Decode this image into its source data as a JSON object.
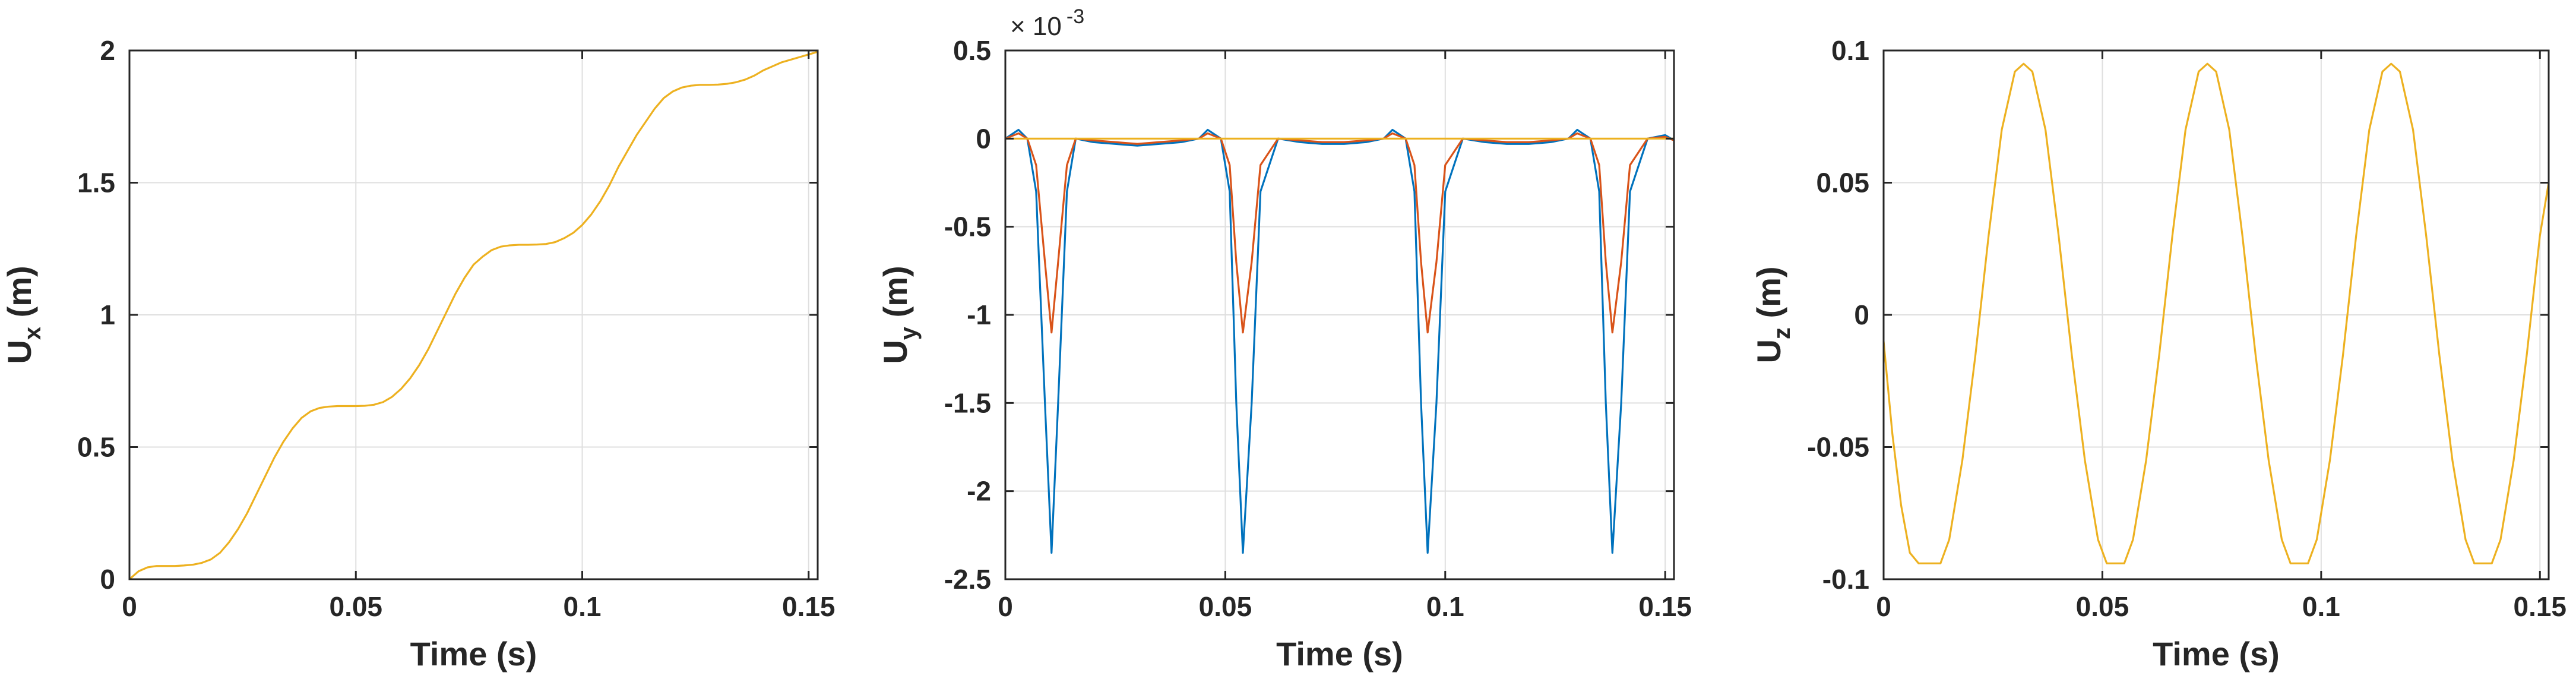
{
  "chart_data": [
    {
      "type": "line",
      "ylabel_main": "U",
      "ylabel_sub": "x",
      "ylabel_unit": " (m)",
      "xlabel": "Time (s)",
      "xlim": [
        0,
        0.152
      ],
      "ylim": [
        0,
        2
      ],
      "xticks": [
        0,
        0.05,
        0.1,
        0.15
      ],
      "xtick_labels": [
        "0",
        "0.05",
        "0.1",
        "0.15"
      ],
      "yticks": [
        0,
        0.5,
        1,
        1.5,
        2
      ],
      "ytick_labels": [
        "0",
        "0.5",
        "1",
        "1.5",
        "2"
      ],
      "grid": true,
      "series": [
        {
          "color": "#EDB120",
          "x": [
            0,
            0.002,
            0.004,
            0.006,
            0.008,
            0.01,
            0.012,
            0.014,
            0.016,
            0.018,
            0.02,
            0.022,
            0.024,
            0.026,
            0.028,
            0.03,
            0.032,
            0.034,
            0.036,
            0.038,
            0.04,
            0.042,
            0.044,
            0.046,
            0.048,
            0.05,
            0.052,
            0.054,
            0.056,
            0.058,
            0.06,
            0.062,
            0.064,
            0.066,
            0.068,
            0.07,
            0.072,
            0.074,
            0.076,
            0.078,
            0.08,
            0.082,
            0.084,
            0.086,
            0.088,
            0.09,
            0.092,
            0.094,
            0.096,
            0.098,
            0.1,
            0.102,
            0.104,
            0.106,
            0.108,
            0.11,
            0.112,
            0.114,
            0.116,
            0.118,
            0.12,
            0.122,
            0.124,
            0.126,
            0.128,
            0.13,
            0.132,
            0.134,
            0.136,
            0.138,
            0.14,
            0.142,
            0.144,
            0.146,
            0.148,
            0.15,
            0.152
          ],
          "y": [
            0.0,
            0.03,
            0.045,
            0.05,
            0.05,
            0.05,
            0.052,
            0.055,
            0.062,
            0.075,
            0.1,
            0.14,
            0.19,
            0.25,
            0.32,
            0.39,
            0.46,
            0.52,
            0.57,
            0.61,
            0.635,
            0.648,
            0.653,
            0.655,
            0.655,
            0.655,
            0.656,
            0.66,
            0.67,
            0.69,
            0.72,
            0.76,
            0.81,
            0.87,
            0.94,
            1.01,
            1.08,
            1.14,
            1.19,
            1.22,
            1.245,
            1.258,
            1.263,
            1.265,
            1.265,
            1.266,
            1.268,
            1.275,
            1.29,
            1.31,
            1.34,
            1.38,
            1.43,
            1.49,
            1.56,
            1.62,
            1.68,
            1.73,
            1.78,
            1.82,
            1.845,
            1.86,
            1.867,
            1.87,
            1.87,
            1.871,
            1.874,
            1.88,
            1.89,
            1.905,
            1.925,
            1.94,
            1.955,
            1.965,
            1.975,
            1.985,
            1.995
          ]
        }
      ]
    },
    {
      "type": "line",
      "ylabel_main": "U",
      "ylabel_sub": "y",
      "ylabel_unit": " (m)",
      "xlabel": "Time (s)",
      "exponent_label": "× 10",
      "exponent_power": "-3",
      "xlim": [
        0,
        0.152
      ],
      "ylim": [
        -2.5,
        0.5
      ],
      "xticks": [
        0,
        0.05,
        0.1,
        0.15
      ],
      "xtick_labels": [
        "0",
        "0.05",
        "0.1",
        "0.15"
      ],
      "yticks": [
        -2.5,
        -2,
        -1.5,
        -1,
        -0.5,
        0,
        0.5
      ],
      "ytick_labels": [
        "-2.5",
        "-2",
        "-1.5",
        "-1",
        "-0.5",
        "0",
        "0.5"
      ],
      "grid": true,
      "series": [
        {
          "color": "#0072BD",
          "x": [
            0,
            0.003,
            0.005,
            0.007,
            0.009,
            0.0105,
            0.012,
            0.014,
            0.016,
            0.02,
            0.025,
            0.03,
            0.035,
            0.04,
            0.044,
            0.046,
            0.049,
            0.051,
            0.0525,
            0.054,
            0.056,
            0.058,
            0.062,
            0.067,
            0.072,
            0.077,
            0.082,
            0.086,
            0.088,
            0.091,
            0.093,
            0.0945,
            0.096,
            0.098,
            0.1,
            0.104,
            0.109,
            0.114,
            0.119,
            0.124,
            0.128,
            0.13,
            0.133,
            0.135,
            0.1365,
            0.138,
            0.14,
            0.142,
            0.146,
            0.15,
            0.152
          ],
          "y": [
            0.0,
            0.05,
            0.0,
            -0.3,
            -1.5,
            -2.35,
            -1.5,
            -0.3,
            0.0,
            -0.02,
            -0.03,
            -0.04,
            -0.03,
            -0.02,
            0.0,
            0.05,
            0.0,
            -0.3,
            -1.5,
            -2.35,
            -1.5,
            -0.3,
            0.0,
            -0.02,
            -0.03,
            -0.03,
            -0.02,
            0.0,
            0.05,
            0.0,
            -0.3,
            -1.5,
            -2.35,
            -1.5,
            -0.3,
            0.0,
            -0.02,
            -0.03,
            -0.03,
            -0.02,
            0.0,
            0.05,
            0.0,
            -0.3,
            -1.5,
            -2.35,
            -1.5,
            -0.3,
            0.0,
            0.02,
            -0.01
          ]
        },
        {
          "color": "#D95319",
          "x": [
            0,
            0.003,
            0.005,
            0.007,
            0.009,
            0.0105,
            0.012,
            0.014,
            0.016,
            0.02,
            0.025,
            0.03,
            0.035,
            0.04,
            0.044,
            0.046,
            0.049,
            0.051,
            0.0525,
            0.054,
            0.056,
            0.058,
            0.062,
            0.067,
            0.072,
            0.077,
            0.082,
            0.086,
            0.088,
            0.091,
            0.093,
            0.0945,
            0.096,
            0.098,
            0.1,
            0.104,
            0.109,
            0.114,
            0.119,
            0.124,
            0.128,
            0.13,
            0.133,
            0.135,
            0.1365,
            0.138,
            0.14,
            0.142,
            0.146,
            0.15,
            0.152
          ],
          "y": [
            0.0,
            0.03,
            0.0,
            -0.15,
            -0.7,
            -1.1,
            -0.7,
            -0.15,
            0.0,
            -0.01,
            -0.02,
            -0.03,
            -0.02,
            -0.01,
            0.0,
            0.03,
            0.0,
            -0.15,
            -0.7,
            -1.1,
            -0.7,
            -0.15,
            0.0,
            -0.01,
            -0.02,
            -0.02,
            -0.01,
            0.0,
            0.03,
            0.0,
            -0.15,
            -0.7,
            -1.1,
            -0.7,
            -0.15,
            0.0,
            -0.01,
            -0.02,
            -0.02,
            -0.01,
            0.0,
            0.03,
            0.0,
            -0.15,
            -0.7,
            -1.1,
            -0.7,
            -0.15,
            0.0,
            0.01,
            -0.01
          ]
        },
        {
          "color": "#EDB120",
          "x": [
            0,
            0.152
          ],
          "y": [
            0.0,
            0.0
          ]
        }
      ]
    },
    {
      "type": "line",
      "ylabel_main": "U",
      "ylabel_sub": "z",
      "ylabel_unit": " (m)",
      "xlabel": "Time (s)",
      "xlim": [
        0,
        0.152
      ],
      "ylim": [
        -0.1,
        0.1
      ],
      "xticks": [
        0,
        0.05,
        0.1,
        0.15
      ],
      "xtick_labels": [
        "0",
        "0.05",
        "0.1",
        "0.15"
      ],
      "yticks": [
        -0.1,
        -0.05,
        0,
        0.05,
        0.1
      ],
      "ytick_labels": [
        "-0.1",
        "-0.05",
        "0",
        "0.05",
        "0.1"
      ],
      "grid": true,
      "series": [
        {
          "color": "#EDB120",
          "x": [
            0,
            0.002,
            0.004,
            0.006,
            0.008,
            0.013,
            0.015,
            0.018,
            0.021,
            0.024,
            0.027,
            0.03,
            0.032,
            0.034,
            0.037,
            0.04,
            0.043,
            0.046,
            0.049,
            0.051,
            0.055,
            0.057,
            0.06,
            0.063,
            0.066,
            0.069,
            0.072,
            0.074,
            0.076,
            0.079,
            0.082,
            0.085,
            0.088,
            0.091,
            0.093,
            0.097,
            0.099,
            0.102,
            0.105,
            0.108,
            0.111,
            0.114,
            0.116,
            0.118,
            0.121,
            0.124,
            0.127,
            0.13,
            0.133,
            0.135,
            0.139,
            0.141,
            0.144,
            0.147,
            0.15,
            0.152
          ],
          "y": [
            -0.01,
            -0.045,
            -0.072,
            -0.09,
            -0.094,
            -0.094,
            -0.085,
            -0.055,
            -0.015,
            0.03,
            0.07,
            0.092,
            0.095,
            0.092,
            0.07,
            0.03,
            -0.015,
            -0.055,
            -0.085,
            -0.094,
            -0.094,
            -0.085,
            -0.055,
            -0.015,
            0.03,
            0.07,
            0.092,
            0.095,
            0.092,
            0.07,
            0.03,
            -0.015,
            -0.055,
            -0.085,
            -0.094,
            -0.094,
            -0.085,
            -0.055,
            -0.015,
            0.03,
            0.07,
            0.092,
            0.095,
            0.092,
            0.07,
            0.03,
            -0.015,
            -0.055,
            -0.085,
            -0.094,
            -0.094,
            -0.085,
            -0.055,
            -0.015,
            0.03,
            0.05
          ]
        }
      ]
    }
  ]
}
